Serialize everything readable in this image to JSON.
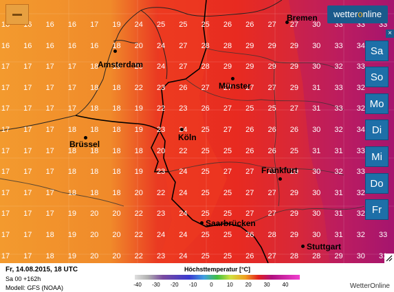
{
  "map": {
    "cities": [
      {
        "name": "Bremen"
      },
      {
        "name": "Amsterdam"
      },
      {
        "name": "Münster"
      },
      {
        "name": "Brüssel"
      },
      {
        "name": "Köln"
      },
      {
        "name": "Frankfurt"
      },
      {
        "name": "Saarbrücken"
      },
      {
        "name": "Stuttgart"
      }
    ],
    "values": [
      [
        "16",
        "16",
        "16",
        "16",
        "17",
        "19",
        "24",
        "25",
        "25",
        "25",
        "26",
        "26",
        "27",
        "27",
        "30",
        "33",
        "33",
        "33"
      ],
      [
        "16",
        "16",
        "16",
        "16",
        "16",
        "18",
        "20",
        "24",
        "27",
        "28",
        "28",
        "29",
        "29",
        "29",
        "30",
        "33",
        "34",
        "34"
      ],
      [
        "17",
        "17",
        "17",
        "17",
        "18",
        "19",
        "20",
        "24",
        "27",
        "28",
        "29",
        "29",
        "29",
        "29",
        "30",
        "32",
        "33",
        "33"
      ],
      [
        "17",
        "17",
        "17",
        "17",
        "18",
        "18",
        "22",
        "23",
        "26",
        "27",
        "27",
        "27",
        "27",
        "29",
        "31",
        "33",
        "32",
        "33"
      ],
      [
        "17",
        "17",
        "17",
        "17",
        "18",
        "18",
        "19",
        "22",
        "23",
        "26",
        "27",
        "25",
        "25",
        "27",
        "31",
        "33",
        "32",
        "33"
      ],
      [
        "17",
        "17",
        "17",
        "18",
        "18",
        "18",
        "19",
        "23",
        "24",
        "25",
        "27",
        "26",
        "26",
        "26",
        "30",
        "32",
        "34",
        "34"
      ],
      [
        "17",
        "17",
        "17",
        "18",
        "18",
        "18",
        "18",
        "20",
        "22",
        "25",
        "25",
        "26",
        "26",
        "25",
        "31",
        "31",
        "33",
        "34"
      ],
      [
        "17",
        "17",
        "17",
        "18",
        "18",
        "18",
        "19",
        "23",
        "24",
        "25",
        "27",
        "27",
        "28",
        "29",
        "30",
        "32",
        "33",
        "33"
      ],
      [
        "17",
        "17",
        "17",
        "18",
        "18",
        "18",
        "20",
        "22",
        "24",
        "25",
        "25",
        "27",
        "27",
        "29",
        "30",
        "31",
        "32",
        "33"
      ],
      [
        "17",
        "17",
        "17",
        "19",
        "20",
        "20",
        "22",
        "23",
        "24",
        "25",
        "25",
        "27",
        "27",
        "29",
        "30",
        "31",
        "32",
        "33"
      ],
      [
        "17",
        "17",
        "18",
        "19",
        "20",
        "20",
        "22",
        "24",
        "24",
        "25",
        "25",
        "26",
        "28",
        "29",
        "30",
        "31",
        "32",
        "33"
      ],
      [
        "17",
        "17",
        "18",
        "19",
        "20",
        "20",
        "22",
        "23",
        "24",
        "25",
        "25",
        "26",
        "27",
        "28",
        "28",
        "29",
        "30",
        "31"
      ]
    ]
  },
  "logo": {
    "text_a": "wetter",
    "text_b": "o",
    "text_c": "nline"
  },
  "close_label": "×",
  "day_buttons": [
    "Sa",
    "So",
    "Mo",
    "Di",
    "Mi",
    "Do",
    "Fr"
  ],
  "footer": {
    "date": "Fr, 14.08.2015, 18 UTC",
    "run": "Sa 00 +162h",
    "model": "Modell: GFS (NOAA)",
    "credit": "WetterOnline"
  },
  "legend": {
    "title": "Höchsttemperatur [°C]",
    "ticks": [
      "-40",
      "-30",
      "-20",
      "-10",
      "0",
      "10",
      "20",
      "30",
      "40"
    ]
  },
  "colors": {
    "orange": "#f39a2e",
    "red": "#e02828",
    "magenta": "#b01870",
    "button_blue": "#1e6fa8"
  }
}
